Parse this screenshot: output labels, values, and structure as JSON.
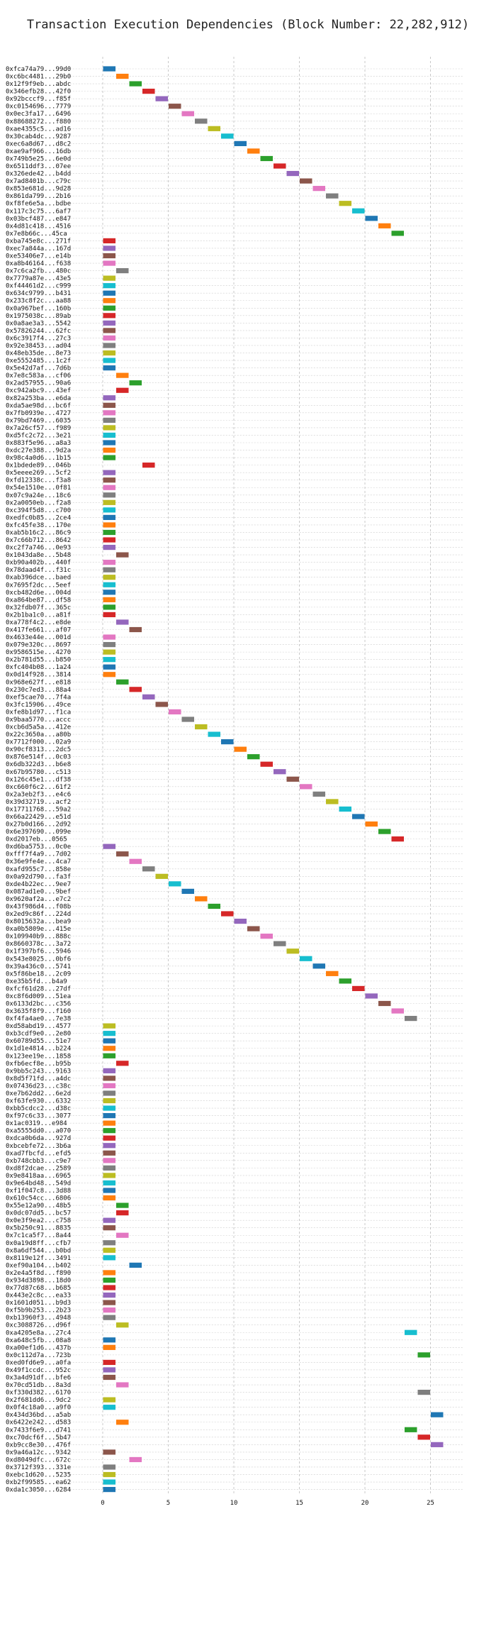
{
  "chart_data": {
    "type": "bar",
    "orientation": "horizontal",
    "title": "Transaction Execution Dependencies (Block Number: 22,282,912)",
    "xlabel": "",
    "ylabel": "",
    "xlim": [
      -2.5,
      27.5
    ],
    "xticks": [
      0,
      5,
      10,
      15,
      20,
      25
    ],
    "grid": true,
    "palette": [
      "#1f77b4",
      "#ff7f0e",
      "#2ca02c",
      "#d62728",
      "#9467bd",
      "#8c564b",
      "#e377c2",
      "#7f7f7f",
      "#bcbd22",
      "#17becf"
    ],
    "transactions": [
      "0xfca74a79...99d0",
      "0xc6bc4481...29b0",
      "0x12f9f9eb...abdc",
      "0x346efb28...42f0",
      "0x92bcccf9...f85f",
      "0xc0154696...7779",
      "0x0ec3fa17...6496",
      "0x88688272...f880",
      "0xae4355c5...ad16",
      "0x30cab4dc...9287",
      "0xec6a8d67...d8c2",
      "0xae9af966...16db",
      "0x749b5e25...6e0d",
      "0x6511ddf3...07ee",
      "0x326ede42...b4dd",
      "0x7ad8401b...c79c",
      "0x853e681d...9d28",
      "0x861da799...2b16",
      "0xf8fe6e5a...bdbe",
      "0x117c3c75...6af7",
      "0x03bcf487...e847",
      "0x4d81c418...4516",
      "0x7e8b66c...45ca",
      "0xba745e8c...271f",
      "0xec7a844a...167d",
      "0xe53406e7...e14b",
      "0xa8b46164...f638",
      "0x7c6ca2fb...480c",
      "0x7779a87e...43e5",
      "0xf44461d2...c999",
      "0x634c9799...b431",
      "0x233c8f2c...aa88",
      "0x0a967bef...160b",
      "0x1975038c...89ab",
      "0x0a8ae3a3...5542",
      "0x57826244...62fc",
      "0x6c3917f4...27c3",
      "0x92e38453...ad04",
      "0x48eb35de...8e73",
      "0xe5552485...1c2f",
      "0x5e42d7af...7d6b",
      "0x7e8c583a...cf06",
      "0x2ad57955...90a6",
      "0xc942abc9...43ef",
      "0x82a253ba...e6da",
      "0xda5ae98d...bc6f",
      "0x7fb0939e...4727",
      "0x79bd7469...6035",
      "0x7a26cf57...f989",
      "0xd5fc2c72...3e21",
      "0x883f5e96...a8a3",
      "0xdc27e388...9d2a",
      "0x98c4a0d6...1b15",
      "0x1bdede89...046b",
      "0x5eeee269...5cf2",
      "0xfd12338c...f3a8",
      "0x54e1510e...0f81",
      "0x07c9a24e...18c6",
      "0x2a0050eb...f2a8",
      "0xc394f5d8...c700",
      "0xedfc0b85...2ce4",
      "0xfc45fe38...170e",
      "0xab5b16c2...86c9",
      "0x7c66b712...8642",
      "0xc2f7a746...0e93",
      "0x1043da8e...5b48",
      "0xb90a402b...440f",
      "0x78daad4f...f31c",
      "0xab396dce...baed",
      "0x7695f2dc...5eef",
      "0xcb482d6e...004d",
      "0xa864be87...df58",
      "0x32fdb07f...365c",
      "0x2b1ba1c0...a81f",
      "0xa778f4c2...e8de",
      "0x417fe661...af07",
      "0x4633e44e...001d",
      "0x079e320c...8697",
      "0x9586515e...4270",
      "0x2b781d55...b850",
      "0xfc404b08...1a24",
      "0x0d14f928...3814",
      "0x968e627f...e818",
      "0x230c7ed3...88a4",
      "0xef5cae70...7f4a",
      "0x3fc15906...49ce",
      "0xfe8b1d97...f1ca",
      "0x9baa5770...accc",
      "0xcb6d5a5a...412e",
      "0x22c3650a...a80b",
      "0x7712f000...02a9",
      "0x90cf8313...2dc5",
      "0x876e514f...0c03",
      "0x6db322d3...b6e8",
      "0x67b95780...c513",
      "0x126c45e1...df38",
      "0xc660f6c2...61f2",
      "0x2a3eb2f3...e4c6",
      "0x39d32719...acf2",
      "0x17711768...59a2",
      "0x66a22429...e51d",
      "0x27b0d166...2d92",
      "0x6e397690...099e",
      "0xd2017eb...0565",
      "0xd6ba5753...0c0e",
      "0xfff7f4a9...7d02",
      "0x36e9fe4e...4ca7",
      "0xafd955c7...858e",
      "0x0a92d790...fa3f",
      "0xde4b22ec...9ee7",
      "0x087ad1e0...9bef",
      "0x9620af2a...e7c2",
      "0x43f986d4...f08b",
      "0x2ed9c86f...224d",
      "0x8015632a...bea9",
      "0xa0b5809e...415e",
      "0x109940b9...888c",
      "0x8660378c...3a72",
      "0x1f397bf6...5946",
      "0x543e8025...0bf6",
      "0x39a436c0...5741",
      "0x5f86be18...2c09",
      "0xe35b5fd...b4a9",
      "0xfcf61d28...27df",
      "0xc8f6d009...51ea",
      "0x6133d2bc...c356",
      "0x3635f8f9...f160",
      "0xf4fa4ae0...7e38",
      "0xd58abd19...4577",
      "0xb3cdf9e0...2e80",
      "0x60789d55...51e7",
      "0x1d1e4814...b224",
      "0x123ee19e...1858",
      "0xfb6ecf8e...b95b",
      "0x9bb5c243...9163",
      "0x8d5f71fd...a4dc",
      "0x07436d23...c38c",
      "0xe7b62dd2...6e2d",
      "0xf63fe930...6332",
      "0xbb5cdcc2...d38c",
      "0xf97c6c33...3077",
      "0x1ac0319...e984",
      "0xa5555dd0...a070",
      "0xdca0b6da...927d",
      "0xbcebfe72...3b6a",
      "0xad7fbcfd...efd5",
      "0xb748cbb3...c9e7",
      "0xd8f2dcae...2589",
      "0x9e8418aa...6965",
      "0x9e64bd48...549d",
      "0xf1f047c8...3d88",
      "0x610c54cc...6806",
      "0x55e12a90...48b5",
      "0x0dc07dd5...bc57",
      "0x0e3f9ea2...c758",
      "0x5b250c91...8835",
      "0x7c1ca5f7...8a44",
      "0x0a19d8ff...cfb7",
      "0x8a6df544...b0bd",
      "0x8119e12f...3491",
      "0xef90a104...b402",
      "0x2e4a5f8d...f890",
      "0x934d3898...18d0",
      "0x77d87c68...b685",
      "0x443e2c8c...ea33",
      "0x1601d051...b9d3",
      "0xf5b9b253...2b23",
      "0xb13960f3...4948",
      "0xc3088726...d96f",
      "0xa4205e8a...27c4",
      "0xa648c5fb...08a8",
      "0xa00ef1d6...437b",
      "0x0c112d7a...723b",
      "0xed0fd6e9...a0fa",
      "0x49f1ccdc...952c",
      "0x3a4d91df...bfe6",
      "0x70cd51db...8a3d",
      "0xf330d382...6170",
      "0x2f681dd6...9dc2",
      "0x0f4c18a0...a9f0",
      "0x434d36bd...a5ab",
      "0x6422e242...d583",
      "0x7433f6e9...d741",
      "0xc70dcf6f...5b47",
      "0xb9cc8e30...476f",
      "0x9a46a12c...9342",
      "0xd8049dfc...672c",
      "0x3712f393...331e",
      "0xebc1d620...5235",
      "0xb2f99585...ea62",
      "0xda1c3050...6284"
    ],
    "bars": [
      [
        0,
        0,
        1
      ],
      [
        1,
        1,
        2
      ],
      [
        2,
        2,
        3
      ],
      [
        3,
        3,
        4
      ],
      [
        4,
        4,
        5
      ],
      [
        5,
        5,
        6
      ],
      [
        6,
        6,
        7
      ],
      [
        7,
        7,
        8
      ],
      [
        8,
        8,
        9
      ],
      [
        9,
        9,
        10
      ],
      [
        10,
        10,
        11
      ],
      [
        11,
        11,
        12
      ],
      [
        12,
        12,
        13
      ],
      [
        13,
        13,
        14
      ],
      [
        14,
        14,
        15
      ],
      [
        15,
        15,
        16
      ],
      [
        16,
        16,
        17
      ],
      [
        17,
        17,
        18
      ],
      [
        18,
        18,
        19
      ],
      [
        19,
        19,
        20
      ],
      [
        20,
        20,
        21
      ],
      [
        21,
        21,
        22
      ],
      [
        22,
        22,
        23
      ],
      [
        23,
        0,
        1
      ],
      [
        24,
        0,
        1
      ],
      [
        25,
        0,
        1
      ],
      [
        26,
        0,
        1
      ],
      [
        27,
        1,
        2
      ],
      [
        28,
        0,
        1
      ],
      [
        29,
        0,
        1
      ],
      [
        30,
        0,
        1
      ],
      [
        31,
        0,
        1
      ],
      [
        32,
        0,
        1
      ],
      [
        33,
        0,
        1
      ],
      [
        34,
        0,
        1
      ],
      [
        35,
        0,
        1
      ],
      [
        36,
        0,
        1
      ],
      [
        37,
        0,
        1
      ],
      [
        38,
        0,
        1
      ],
      [
        39,
        0,
        1
      ],
      [
        40,
        0,
        1
      ],
      [
        41,
        1,
        2
      ],
      [
        42,
        2,
        3
      ],
      [
        43,
        1,
        2
      ],
      [
        44,
        0,
        1
      ],
      [
        45,
        0,
        1
      ],
      [
        46,
        0,
        1
      ],
      [
        47,
        0,
        1
      ],
      [
        48,
        0,
        1
      ],
      [
        49,
        0,
        1
      ],
      [
        50,
        0,
        1
      ],
      [
        51,
        0,
        1
      ],
      [
        52,
        0,
        1
      ],
      [
        53,
        3,
        4
      ],
      [
        54,
        0,
        1
      ],
      [
        55,
        0,
        1
      ],
      [
        56,
        0,
        1
      ],
      [
        57,
        0,
        1
      ],
      [
        58,
        0,
        1
      ],
      [
        59,
        0,
        1
      ],
      [
        60,
        0,
        1
      ],
      [
        61,
        0,
        1
      ],
      [
        62,
        0,
        1
      ],
      [
        63,
        0,
        1
      ],
      [
        64,
        0,
        1
      ],
      [
        65,
        1,
        2
      ],
      [
        66,
        0,
        1
      ],
      [
        67,
        0,
        1
      ],
      [
        68,
        0,
        1
      ],
      [
        69,
        0,
        1
      ],
      [
        70,
        0,
        1
      ],
      [
        71,
        0,
        1
      ],
      [
        72,
        0,
        1
      ],
      [
        73,
        0,
        1
      ],
      [
        74,
        1,
        2
      ],
      [
        75,
        2,
        3
      ],
      [
        76,
        0,
        1
      ],
      [
        77,
        0,
        1
      ],
      [
        78,
        0,
        1
      ],
      [
        79,
        0,
        1
      ],
      [
        80,
        0,
        1
      ],
      [
        81,
        0,
        1
      ],
      [
        82,
        1,
        2
      ],
      [
        83,
        2,
        3
      ],
      [
        84,
        3,
        4
      ],
      [
        85,
        4,
        5
      ],
      [
        86,
        5,
        6
      ],
      [
        87,
        6,
        7
      ],
      [
        88,
        7,
        8
      ],
      [
        89,
        8,
        9
      ],
      [
        90,
        9,
        10
      ],
      [
        91,
        10,
        11
      ],
      [
        92,
        11,
        12
      ],
      [
        93,
        12,
        13
      ],
      [
        94,
        13,
        14
      ],
      [
        95,
        14,
        15
      ],
      [
        96,
        15,
        16
      ],
      [
        97,
        16,
        17
      ],
      [
        98,
        17,
        18
      ],
      [
        99,
        18,
        19
      ],
      [
        100,
        19,
        20
      ],
      [
        101,
        20,
        21
      ],
      [
        102,
        21,
        22
      ],
      [
        103,
        22,
        23
      ],
      [
        104,
        0,
        1
      ],
      [
        105,
        1,
        2
      ],
      [
        106,
        2,
        3
      ],
      [
        107,
        3,
        4
      ],
      [
        108,
        4,
        5
      ],
      [
        109,
        5,
        6
      ],
      [
        110,
        6,
        7
      ],
      [
        111,
        7,
        8
      ],
      [
        112,
        8,
        9
      ],
      [
        113,
        9,
        10
      ],
      [
        114,
        10,
        11
      ],
      [
        115,
        11,
        12
      ],
      [
        116,
        12,
        13
      ],
      [
        117,
        13,
        14
      ],
      [
        118,
        14,
        15
      ],
      [
        119,
        15,
        16
      ],
      [
        120,
        16,
        17
      ],
      [
        121,
        17,
        18
      ],
      [
        122,
        18,
        19
      ],
      [
        123,
        19,
        20
      ],
      [
        124,
        20,
        21
      ],
      [
        125,
        21,
        22
      ],
      [
        126,
        22,
        23
      ],
      [
        127,
        23,
        24
      ],
      [
        128,
        0,
        1
      ],
      [
        129,
        0,
        1
      ],
      [
        130,
        0,
        1
      ],
      [
        131,
        0,
        1
      ],
      [
        132,
        0,
        1
      ],
      [
        133,
        1,
        2
      ],
      [
        134,
        0,
        1
      ],
      [
        135,
        0,
        1
      ],
      [
        136,
        0,
        1
      ],
      [
        137,
        0,
        1
      ],
      [
        138,
        0,
        1
      ],
      [
        139,
        0,
        1
      ],
      [
        140,
        0,
        1
      ],
      [
        141,
        0,
        1
      ],
      [
        142,
        0,
        1
      ],
      [
        143,
        0,
        1
      ],
      [
        144,
        0,
        1
      ],
      [
        145,
        0,
        1
      ],
      [
        146,
        0,
        1
      ],
      [
        147,
        0,
        1
      ],
      [
        148,
        0,
        1
      ],
      [
        149,
        0,
        1
      ],
      [
        150,
        0,
        1
      ],
      [
        151,
        0,
        1
      ],
      [
        152,
        1,
        2
      ],
      [
        153,
        1,
        2
      ],
      [
        154,
        0,
        1
      ],
      [
        155,
        0,
        1
      ],
      [
        156,
        1,
        2
      ],
      [
        157,
        0,
        1
      ],
      [
        158,
        0,
        1
      ],
      [
        159,
        0,
        1
      ],
      [
        160,
        2,
        3
      ],
      [
        161,
        0,
        1
      ],
      [
        162,
        0,
        1
      ],
      [
        163,
        0,
        1
      ],
      [
        164,
        0,
        1
      ],
      [
        165,
        0,
        1
      ],
      [
        166,
        0,
        1
      ],
      [
        167,
        0,
        1
      ],
      [
        168,
        1,
        2
      ],
      [
        169,
        23,
        24
      ],
      [
        170,
        0,
        1
      ],
      [
        171,
        0,
        1
      ],
      [
        172,
        24,
        25
      ],
      [
        173,
        0,
        1
      ],
      [
        174,
        0,
        1
      ],
      [
        175,
        0,
        1
      ],
      [
        176,
        1,
        2
      ],
      [
        177,
        24,
        25
      ],
      [
        178,
        0,
        1
      ],
      [
        179,
        0,
        1
      ],
      [
        180,
        25,
        26
      ],
      [
        181,
        1,
        2
      ],
      [
        182,
        23,
        24
      ],
      [
        183,
        24,
        25
      ],
      [
        184,
        25,
        26
      ],
      [
        185,
        0,
        1
      ],
      [
        186,
        2,
        3
      ],
      [
        187,
        0,
        1
      ],
      [
        188,
        0,
        1
      ],
      [
        189,
        0,
        1
      ],
      [
        190,
        0,
        1
      ]
    ]
  }
}
